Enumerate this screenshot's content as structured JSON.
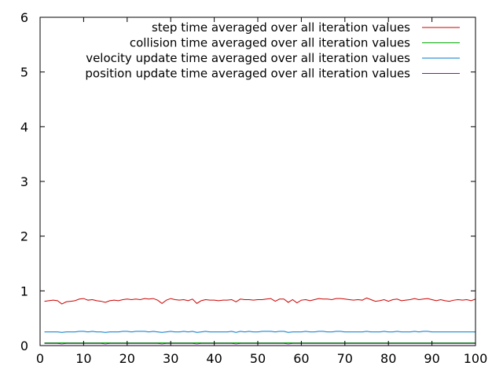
{
  "chart_data": {
    "type": "line",
    "title": "",
    "xlabel": "",
    "ylabel": "",
    "xlim": [
      0,
      100
    ],
    "ylim": [
      0,
      6
    ],
    "xticks": [
      0,
      10,
      20,
      30,
      40,
      50,
      60,
      70,
      80,
      90,
      100
    ],
    "yticks": [
      0,
      1,
      2,
      3,
      4,
      5,
      6
    ],
    "xtick_labels": [
      "0",
      "10",
      "20",
      "30",
      "40",
      "50",
      "60",
      "70",
      "80",
      "90",
      "100"
    ],
    "ytick_labels": [
      "0",
      "1",
      "2",
      "3",
      "4",
      "5",
      "6"
    ],
    "grid": false,
    "legend_position": "top-right",
    "x": [
      1,
      2,
      3,
      4,
      5,
      6,
      7,
      8,
      9,
      10,
      11,
      12,
      13,
      14,
      15,
      16,
      17,
      18,
      19,
      20,
      21,
      22,
      23,
      24,
      25,
      26,
      27,
      28,
      29,
      30,
      31,
      32,
      33,
      34,
      35,
      36,
      37,
      38,
      39,
      40,
      41,
      42,
      43,
      44,
      45,
      46,
      47,
      48,
      49,
      50,
      51,
      52,
      53,
      54,
      55,
      56,
      57,
      58,
      59,
      60,
      61,
      62,
      63,
      64,
      65,
      66,
      67,
      68,
      69,
      70,
      71,
      72,
      73,
      74,
      75,
      76,
      77,
      78,
      79,
      80,
      81,
      82,
      83,
      84,
      85,
      86,
      87,
      88,
      89,
      90,
      91,
      92,
      93,
      94,
      95,
      96,
      97,
      98,
      99,
      100
    ],
    "series": [
      {
        "name": "step time averaged over all iteration values",
        "color": "#cc0000",
        "values": [
          0.81,
          0.82,
          0.83,
          0.82,
          0.76,
          0.8,
          0.81,
          0.82,
          0.85,
          0.86,
          0.83,
          0.84,
          0.82,
          0.81,
          0.79,
          0.82,
          0.83,
          0.82,
          0.84,
          0.85,
          0.84,
          0.85,
          0.84,
          0.86,
          0.85,
          0.86,
          0.83,
          0.77,
          0.83,
          0.86,
          0.84,
          0.83,
          0.84,
          0.82,
          0.85,
          0.77,
          0.82,
          0.84,
          0.83,
          0.83,
          0.82,
          0.83,
          0.83,
          0.84,
          0.8,
          0.85,
          0.84,
          0.84,
          0.83,
          0.84,
          0.84,
          0.85,
          0.86,
          0.81,
          0.85,
          0.85,
          0.79,
          0.84,
          0.78,
          0.83,
          0.84,
          0.82,
          0.84,
          0.86,
          0.85,
          0.85,
          0.84,
          0.86,
          0.86,
          0.85,
          0.84,
          0.83,
          0.84,
          0.83,
          0.87,
          0.84,
          0.81,
          0.82,
          0.84,
          0.81,
          0.84,
          0.85,
          0.82,
          0.83,
          0.84,
          0.86,
          0.84,
          0.85,
          0.86,
          0.84,
          0.82,
          0.84,
          0.82,
          0.81,
          0.83,
          0.84,
          0.83,
          0.84,
          0.82,
          0.85
        ]
      },
      {
        "name": "collision time averaged over all iteration values",
        "color": "#00aa00",
        "values": [
          0.05,
          0.05,
          0.05,
          0.05,
          0.05,
          0.05,
          0.05,
          0.05,
          0.05,
          0.05,
          0.05,
          0.05,
          0.05,
          0.05,
          0.05,
          0.05,
          0.05,
          0.05,
          0.05,
          0.05,
          0.05,
          0.05,
          0.05,
          0.05,
          0.05,
          0.05,
          0.05,
          0.05,
          0.05,
          0.05,
          0.05,
          0.05,
          0.05,
          0.05,
          0.05,
          0.05,
          0.05,
          0.05,
          0.05,
          0.05,
          0.05,
          0.05,
          0.05,
          0.05,
          0.05,
          0.05,
          0.05,
          0.05,
          0.05,
          0.05,
          0.05,
          0.05,
          0.05,
          0.05,
          0.05,
          0.05,
          0.05,
          0.05,
          0.05,
          0.05,
          0.05,
          0.05,
          0.05,
          0.05,
          0.05,
          0.05,
          0.05,
          0.05,
          0.05,
          0.05,
          0.05,
          0.05,
          0.05,
          0.05,
          0.05,
          0.05,
          0.05,
          0.05,
          0.05,
          0.05,
          0.05,
          0.05,
          0.05,
          0.05,
          0.05,
          0.05,
          0.05,
          0.05,
          0.05,
          0.05,
          0.05,
          0.05,
          0.05,
          0.05,
          0.05,
          0.05,
          0.05,
          0.05,
          0.05,
          0.05
        ]
      },
      {
        "name": "velocity update time averaged over all iteration values",
        "color": "#0077cc",
        "values": [
          0.25,
          0.25,
          0.25,
          0.25,
          0.24,
          0.25,
          0.25,
          0.25,
          0.26,
          0.26,
          0.25,
          0.26,
          0.25,
          0.25,
          0.24,
          0.25,
          0.25,
          0.25,
          0.26,
          0.26,
          0.25,
          0.26,
          0.26,
          0.26,
          0.25,
          0.26,
          0.25,
          0.24,
          0.25,
          0.26,
          0.25,
          0.25,
          0.26,
          0.25,
          0.26,
          0.24,
          0.25,
          0.26,
          0.25,
          0.25,
          0.25,
          0.25,
          0.25,
          0.26,
          0.24,
          0.26,
          0.25,
          0.26,
          0.25,
          0.25,
          0.26,
          0.26,
          0.26,
          0.25,
          0.26,
          0.26,
          0.24,
          0.25,
          0.25,
          0.25,
          0.26,
          0.25,
          0.25,
          0.26,
          0.26,
          0.25,
          0.25,
          0.26,
          0.26,
          0.25,
          0.25,
          0.25,
          0.25,
          0.25,
          0.26,
          0.25,
          0.25,
          0.25,
          0.26,
          0.25,
          0.25,
          0.26,
          0.25,
          0.25,
          0.25,
          0.26,
          0.25,
          0.26,
          0.26,
          0.25,
          0.25,
          0.25,
          0.25,
          0.25,
          0.25,
          0.25,
          0.25,
          0.25,
          0.25,
          0.25
        ]
      },
      {
        "name": "position update time averaged over all iteration values",
        "color": "#9900cc",
        "values": [
          0.04,
          0.04,
          0.04,
          0.04,
          0.03,
          0.04,
          0.04,
          0.04,
          0.04,
          0.04,
          0.04,
          0.04,
          0.04,
          0.04,
          0.03,
          0.04,
          0.04,
          0.04,
          0.04,
          0.04,
          0.04,
          0.04,
          0.04,
          0.04,
          0.04,
          0.04,
          0.04,
          0.03,
          0.04,
          0.04,
          0.04,
          0.04,
          0.04,
          0.04,
          0.04,
          0.03,
          0.04,
          0.04,
          0.04,
          0.04,
          0.04,
          0.04,
          0.04,
          0.04,
          0.03,
          0.04,
          0.04,
          0.04,
          0.04,
          0.04,
          0.04,
          0.04,
          0.04,
          0.04,
          0.04,
          0.04,
          0.03,
          0.04,
          0.04,
          0.04,
          0.04,
          0.04,
          0.04,
          0.04,
          0.04,
          0.04,
          0.04,
          0.04,
          0.04,
          0.04,
          0.04,
          0.04,
          0.04,
          0.04,
          0.04,
          0.04,
          0.04,
          0.04,
          0.04,
          0.04,
          0.04,
          0.04,
          0.04,
          0.04,
          0.04,
          0.04,
          0.04,
          0.04,
          0.04,
          0.04,
          0.04,
          0.04,
          0.04,
          0.04,
          0.04,
          0.04,
          0.04,
          0.04,
          0.04,
          0.04
        ]
      }
    ]
  }
}
